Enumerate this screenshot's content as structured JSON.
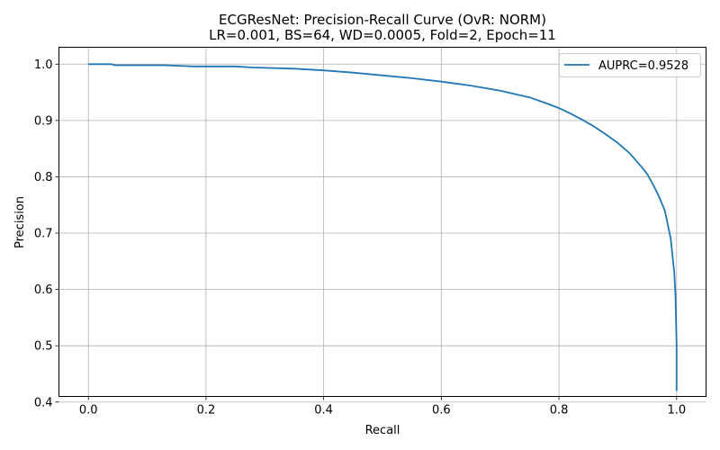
{
  "chart_data": {
    "type": "line",
    "title": "ECGResNet: Precision-Recall Curve (OvR: NORM)",
    "subtitle": "LR=0.001, BS=64, WD=0.0005, Fold=2, Epoch=11",
    "xlabel": "Recall",
    "ylabel": "Precision",
    "xlim": [
      -0.05,
      1.05
    ],
    "ylim": [
      0.41,
      1.03
    ],
    "xticks": [
      0.0,
      0.2,
      0.4,
      0.6,
      0.8,
      1.0
    ],
    "xtick_labels": [
      "0.0",
      "0.2",
      "0.4",
      "0.6",
      "0.8",
      "1.0"
    ],
    "yticks": [
      0.4,
      0.5,
      0.6,
      0.7,
      0.8,
      0.9,
      1.0
    ],
    "ytick_labels": [
      "0.4",
      "0.5",
      "0.6",
      "0.7",
      "0.8",
      "0.9",
      "1.0"
    ],
    "grid": true,
    "legend_position": "top-right",
    "series": [
      {
        "name": "AUPRC=0.9528",
        "color": "#1f77b4",
        "x": [
          0.0,
          0.04,
          0.045,
          0.08,
          0.13,
          0.18,
          0.25,
          0.28,
          0.35,
          0.4,
          0.45,
          0.5,
          0.55,
          0.6,
          0.65,
          0.7,
          0.75,
          0.78,
          0.8,
          0.82,
          0.84,
          0.86,
          0.88,
          0.9,
          0.92,
          0.94,
          0.95,
          0.96,
          0.97,
          0.98,
          0.985,
          0.99,
          0.993,
          0.996,
          0.998,
          1.0,
          1.0
        ],
        "y": [
          1.0,
          1.0,
          0.998,
          0.998,
          0.998,
          0.996,
          0.996,
          0.994,
          0.992,
          0.989,
          0.985,
          0.98,
          0.975,
          0.969,
          0.962,
          0.953,
          0.941,
          0.93,
          0.922,
          0.912,
          0.901,
          0.889,
          0.875,
          0.86,
          0.842,
          0.818,
          0.805,
          0.786,
          0.765,
          0.74,
          0.715,
          0.69,
          0.66,
          0.63,
          0.59,
          0.5,
          0.42
        ]
      }
    ]
  }
}
